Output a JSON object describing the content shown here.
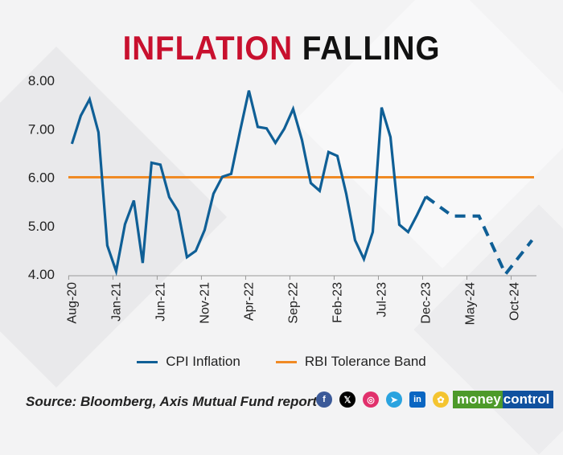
{
  "title": {
    "part1": "INFLATION",
    "part2": "FALLING"
  },
  "colors": {
    "title_red": "#c8102e",
    "cpi": "#0f5f96",
    "band": "#f08a24"
  },
  "chart_data": {
    "type": "line",
    "title": "INFLATION FALLING",
    "xlabel": "",
    "ylabel": "",
    "ylim": [
      4.0,
      8.0
    ],
    "yticks": [
      "4.00",
      "5.00",
      "6.00",
      "7.00",
      "8.00"
    ],
    "ytick_values": [
      4,
      5,
      6,
      7,
      8
    ],
    "x_tick_labels": [
      "Aug-20",
      "Jan-21",
      "Jun-21",
      "Nov-21",
      "Apr-22",
      "Sep-22",
      "Feb-23",
      "Jul-23",
      "Dec-23",
      "May-24",
      "Oct-24"
    ],
    "x_tick_index": [
      0,
      5,
      10,
      15,
      20,
      25,
      30,
      35,
      40,
      45,
      50
    ],
    "xlim_index": [
      -0.4,
      52.5
    ],
    "series": [
      {
        "name": "CPI Inflation",
        "style": "solid",
        "x_index": [
          0,
          1,
          2,
          3,
          4,
          5,
          6,
          7,
          8,
          9,
          10,
          11,
          12,
          13,
          14,
          15,
          16,
          17,
          18,
          19,
          20,
          21,
          22,
          23,
          24,
          25,
          26,
          27,
          28,
          29,
          30,
          31,
          32,
          33,
          34,
          35,
          36,
          37,
          38,
          39,
          40
        ],
        "values": [
          6.69,
          7.27,
          7.61,
          6.93,
          4.59,
          4.06,
          5.03,
          5.52,
          4.23,
          6.3,
          6.26,
          5.59,
          5.3,
          4.35,
          4.48,
          4.91,
          5.66,
          6.01,
          6.07,
          6.95,
          7.79,
          7.04,
          7.01,
          6.71,
          7.0,
          7.41,
          6.77,
          5.88,
          5.72,
          6.52,
          6.44,
          5.66,
          4.7,
          4.31,
          4.87,
          7.44,
          6.83,
          5.02,
          4.87,
          5.22,
          5.6
        ]
      },
      {
        "name": "CPI Inflation (projection)",
        "style": "dashed",
        "x_index": [
          40,
          43,
          46,
          49,
          52
        ],
        "values": [
          5.6,
          5.2,
          5.2,
          4.0,
          4.7
        ]
      },
      {
        "name": "RBI Tolerance Band",
        "style": "solid",
        "constant": 6.0
      }
    ],
    "legend": [
      "CPI Inflation",
      "RBI Tolerance Band"
    ],
    "legend_position": "bottom",
    "grid": false
  },
  "source": "Source: Bloomberg, Axis Mutual Fund report",
  "socials": [
    {
      "icon": "facebook-icon",
      "glyph": "f",
      "color": "#3b5998"
    },
    {
      "icon": "x-icon",
      "glyph": "𝕏",
      "color": "#000000"
    },
    {
      "icon": "instagram-icon",
      "glyph": "◎",
      "color": "#e1306c"
    },
    {
      "icon": "telegram-icon",
      "glyph": "➤",
      "color": "#2aa3df"
    },
    {
      "icon": "linkedin-icon",
      "glyph": "in",
      "color": "#0a66c2"
    },
    {
      "icon": "koo-icon",
      "glyph": "✿",
      "color": "#f4c430"
    }
  ],
  "brand": {
    "part1": "money",
    "part2": "control"
  }
}
